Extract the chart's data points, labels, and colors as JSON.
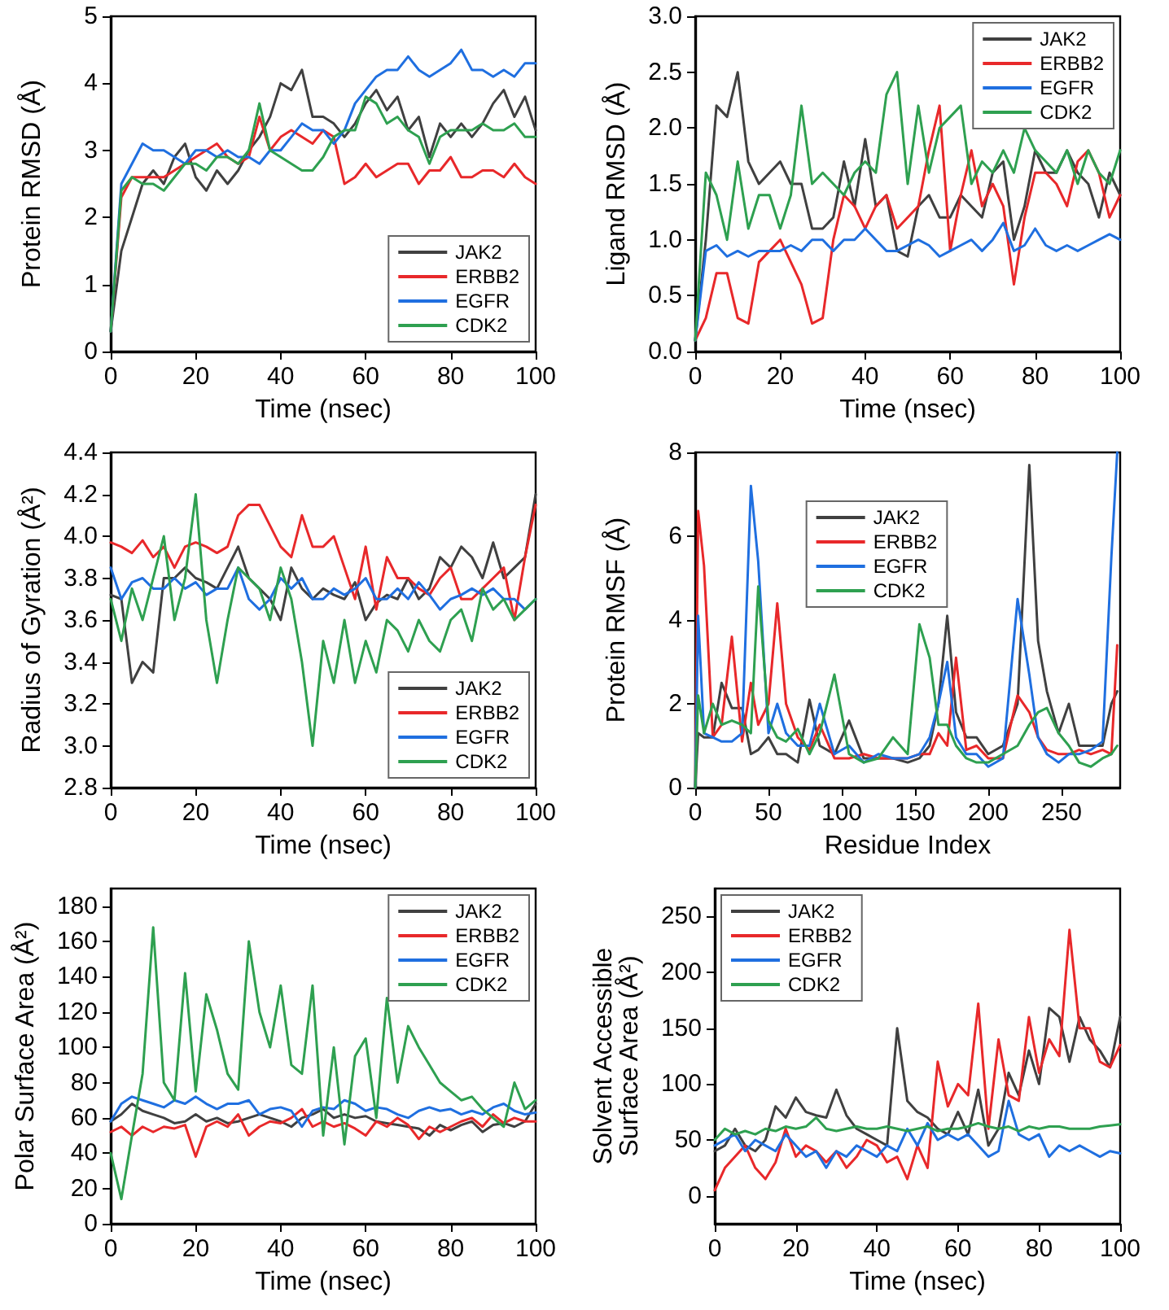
{
  "chart_data": [
    {
      "type": "line",
      "xlabel": "Time (nsec)",
      "ylabel": "Protein RMSD (Å)",
      "marker": "none",
      "legend": "bottom right",
      "x": [
        0,
        2.5,
        5,
        7.5,
        10,
        12.5,
        15,
        17.5,
        20,
        22.5,
        25,
        27.5,
        30,
        32.5,
        35,
        37.5,
        40,
        42.5,
        45,
        47.5,
        50,
        52.5,
        55,
        57.5,
        60,
        62.5,
        65,
        67.5,
        70,
        72.5,
        75,
        77.5,
        80,
        82.5,
        85,
        87.5,
        90,
        92.5,
        95,
        97.5,
        100
      ],
      "xlim": [
        0,
        100
      ],
      "xticks": [
        0,
        20,
        40,
        60,
        80,
        100
      ],
      "ylim": [
        0,
        5
      ],
      "yticks": [
        0,
        1,
        2,
        3,
        4,
        5
      ],
      "series": [
        {
          "name": "JAK2",
          "color": "#404040",
          "values": [
            0.3,
            1.5,
            2.0,
            2.5,
            2.7,
            2.5,
            2.9,
            3.1,
            2.6,
            2.4,
            2.7,
            2.5,
            2.7,
            3.0,
            3.2,
            3.5,
            4.0,
            3.9,
            4.2,
            3.5,
            3.5,
            3.4,
            3.2,
            3.4,
            3.7,
            3.9,
            3.6,
            3.8,
            3.3,
            3.5,
            2.9,
            3.4,
            3.2,
            3.4,
            3.2,
            3.4,
            3.7,
            3.9,
            3.5,
            3.8,
            3.3
          ]
        },
        {
          "name": "ERBB2",
          "color": "#e8282a",
          "values": [
            0.3,
            2.3,
            2.6,
            2.6,
            2.6,
            2.6,
            2.7,
            2.8,
            2.9,
            3.0,
            3.1,
            2.9,
            2.8,
            2.9,
            3.5,
            3.0,
            3.2,
            3.3,
            3.2,
            3.1,
            3.3,
            3.2,
            2.5,
            2.6,
            2.8,
            2.6,
            2.7,
            2.8,
            2.8,
            2.5,
            2.7,
            2.7,
            2.9,
            2.6,
            2.6,
            2.7,
            2.7,
            2.6,
            2.8,
            2.6,
            2.5
          ]
        },
        {
          "name": "EGFR",
          "color": "#1f6fe0",
          "values": [
            0.3,
            2.5,
            2.8,
            3.1,
            3.0,
            3.0,
            2.9,
            2.8,
            3.0,
            3.0,
            2.9,
            3.0,
            2.9,
            2.9,
            2.8,
            3.0,
            3.0,
            3.2,
            3.4,
            3.3,
            3.3,
            3.1,
            3.3,
            3.7,
            3.9,
            4.1,
            4.2,
            4.2,
            4.4,
            4.2,
            4.1,
            4.2,
            4.3,
            4.5,
            4.2,
            4.2,
            4.1,
            4.2,
            4.1,
            4.3,
            4.3
          ]
        },
        {
          "name": "CDK2",
          "color": "#2ea050",
          "values": [
            0.3,
            2.4,
            2.6,
            2.5,
            2.5,
            2.4,
            2.6,
            2.8,
            2.8,
            2.7,
            2.9,
            2.9,
            2.8,
            3.0,
            3.7,
            3.0,
            2.9,
            2.8,
            2.7,
            2.7,
            2.9,
            3.2,
            3.3,
            3.3,
            3.8,
            3.7,
            3.4,
            3.5,
            3.3,
            3.2,
            2.8,
            3.2,
            3.3,
            3.3,
            3.3,
            3.4,
            3.3,
            3.3,
            3.4,
            3.2,
            3.2
          ]
        }
      ]
    },
    {
      "type": "line",
      "xlabel": "Time (nsec)",
      "ylabel": "Ligand RMSD (Å)",
      "marker": "none",
      "legend": "top right",
      "x": [
        0,
        2.5,
        5,
        7.5,
        10,
        12.5,
        15,
        17.5,
        20,
        22.5,
        25,
        27.5,
        30,
        32.5,
        35,
        37.5,
        40,
        42.5,
        45,
        47.5,
        50,
        52.5,
        55,
        57.5,
        60,
        62.5,
        65,
        67.5,
        70,
        72.5,
        75,
        77.5,
        80,
        82.5,
        85,
        87.5,
        90,
        92.5,
        95,
        97.5,
        100
      ],
      "xlim": [
        0,
        100
      ],
      "xticks": [
        0,
        20,
        40,
        60,
        80,
        100
      ],
      "ylim": [
        0,
        3
      ],
      "yticks": [
        {
          "value": 0,
          "label": "0.0"
        },
        {
          "value": 0.5,
          "label": "0.5"
        },
        {
          "value": 1,
          "label": "1.0"
        },
        {
          "value": 1.5,
          "label": "1.5"
        },
        {
          "value": 2,
          "label": "2.0"
        },
        {
          "value": 2.5,
          "label": "2.5"
        },
        {
          "value": 3,
          "label": "3.0"
        }
      ],
      "series": [
        {
          "name": "JAK2",
          "color": "#404040",
          "values": [
            0.1,
            1.0,
            2.2,
            2.1,
            2.5,
            1.7,
            1.5,
            1.6,
            1.7,
            1.5,
            1.5,
            1.1,
            1.1,
            1.2,
            1.7,
            1.3,
            1.9,
            1.3,
            1.4,
            0.9,
            0.85,
            1.3,
            1.4,
            1.2,
            1.2,
            1.4,
            1.3,
            1.2,
            1.6,
            1.7,
            1.0,
            1.3,
            1.8,
            1.6,
            1.6,
            1.8,
            1.6,
            1.5,
            1.2,
            1.6,
            1.4
          ]
        },
        {
          "name": "ERBB2",
          "color": "#e8282a",
          "values": [
            0.1,
            0.3,
            0.7,
            0.7,
            0.3,
            0.25,
            0.8,
            0.9,
            1.0,
            0.8,
            0.6,
            0.25,
            0.3,
            1.0,
            1.4,
            1.3,
            1.1,
            1.3,
            1.4,
            1.1,
            1.2,
            1.3,
            1.8,
            2.2,
            0.9,
            1.4,
            1.8,
            1.3,
            1.5,
            1.3,
            0.6,
            1.2,
            1.6,
            1.6,
            1.5,
            1.3,
            1.7,
            1.8,
            1.6,
            1.2,
            1.4
          ]
        },
        {
          "name": "EGFR",
          "color": "#1f6fe0",
          "values": [
            0.1,
            0.9,
            0.95,
            0.85,
            0.9,
            0.85,
            0.9,
            0.9,
            0.9,
            0.95,
            0.9,
            1.0,
            1.0,
            0.9,
            1.0,
            1.0,
            1.1,
            1.0,
            0.9,
            0.9,
            0.95,
            1.0,
            0.95,
            0.85,
            0.9,
            0.95,
            1.0,
            0.9,
            1.0,
            1.15,
            0.9,
            0.95,
            1.1,
            0.95,
            0.9,
            0.95,
            0.9,
            0.95,
            1.0,
            1.05,
            1.0
          ]
        },
        {
          "name": "CDK2",
          "color": "#2ea050",
          "values": [
            0.1,
            1.6,
            1.4,
            1.0,
            1.7,
            1.1,
            1.4,
            1.4,
            1.1,
            1.4,
            2.2,
            1.5,
            1.6,
            1.5,
            1.4,
            1.6,
            1.7,
            1.6,
            2.3,
            2.5,
            1.5,
            2.2,
            1.6,
            2.0,
            2.1,
            2.2,
            1.5,
            1.7,
            1.6,
            1.8,
            1.6,
            2.0,
            1.8,
            1.7,
            1.6,
            1.8,
            1.5,
            1.8,
            1.6,
            1.5,
            1.8
          ]
        }
      ]
    },
    {
      "type": "line",
      "xlabel": "Time (nsec)",
      "ylabel": "Radius of Gyration (Å²)",
      "marker": "none",
      "legend": "bottom right",
      "x": [
        0,
        2.5,
        5,
        7.5,
        10,
        12.5,
        15,
        17.5,
        20,
        22.5,
        25,
        27.5,
        30,
        32.5,
        35,
        37.5,
        40,
        42.5,
        45,
        47.5,
        50,
        52.5,
        55,
        57.5,
        60,
        62.5,
        65,
        67.5,
        70,
        72.5,
        75,
        77.5,
        80,
        82.5,
        85,
        87.5,
        90,
        92.5,
        95,
        97.5,
        100
      ],
      "xlim": [
        0,
        100
      ],
      "xticks": [
        0,
        20,
        40,
        60,
        80,
        100
      ],
      "ylim": [
        2.8,
        4.4
      ],
      "yticks": [
        {
          "value": 2.8,
          "label": "2.8"
        },
        {
          "value": 3,
          "label": "3.0"
        },
        {
          "value": 3.2,
          "label": "3.2"
        },
        {
          "value": 3.4,
          "label": "3.4"
        },
        {
          "value": 3.6,
          "label": "3.6"
        },
        {
          "value": 3.8,
          "label": "3.8"
        },
        {
          "value": 4,
          "label": "4.0"
        },
        {
          "value": 4.2,
          "label": "4.2"
        },
        {
          "value": 4.4,
          "label": "4.4"
        }
      ],
      "series": [
        {
          "name": "JAK2",
          "color": "#404040",
          "values": [
            3.72,
            3.7,
            3.3,
            3.4,
            3.35,
            3.8,
            3.8,
            3.85,
            3.8,
            3.78,
            3.75,
            3.85,
            3.95,
            3.8,
            3.75,
            3.7,
            3.6,
            3.85,
            3.75,
            3.7,
            3.75,
            3.72,
            3.7,
            3.78,
            3.6,
            3.68,
            3.72,
            3.7,
            3.8,
            3.7,
            3.75,
            3.9,
            3.85,
            3.95,
            3.9,
            3.8,
            3.97,
            3.8,
            3.85,
            3.9,
            4.2
          ]
        },
        {
          "name": "ERBB2",
          "color": "#e8282a",
          "values": [
            3.97,
            3.95,
            3.92,
            3.98,
            3.9,
            3.95,
            3.85,
            3.95,
            3.97,
            3.95,
            3.92,
            3.95,
            4.1,
            4.15,
            4.15,
            4.05,
            3.95,
            3.9,
            4.1,
            3.95,
            3.95,
            4.0,
            3.85,
            3.7,
            3.95,
            3.65,
            3.9,
            3.8,
            3.8,
            3.75,
            3.72,
            3.8,
            3.85,
            3.7,
            3.7,
            3.75,
            3.8,
            3.85,
            3.6,
            3.9,
            4.15
          ]
        },
        {
          "name": "EGFR",
          "color": "#1f6fe0",
          "values": [
            3.85,
            3.7,
            3.78,
            3.8,
            3.75,
            3.75,
            3.8,
            3.75,
            3.78,
            3.72,
            3.75,
            3.75,
            3.85,
            3.7,
            3.65,
            3.7,
            3.8,
            3.75,
            3.8,
            3.7,
            3.7,
            3.75,
            3.72,
            3.75,
            3.8,
            3.7,
            3.7,
            3.75,
            3.7,
            3.78,
            3.72,
            3.65,
            3.7,
            3.72,
            3.75,
            3.72,
            3.75,
            3.7,
            3.7,
            3.65,
            3.7
          ]
        },
        {
          "name": "CDK2",
          "color": "#2ea050",
          "values": [
            3.7,
            3.5,
            3.75,
            3.6,
            3.8,
            4.0,
            3.6,
            3.8,
            4.2,
            3.6,
            3.3,
            3.6,
            3.85,
            3.8,
            3.75,
            3.6,
            3.85,
            3.7,
            3.4,
            3.0,
            3.5,
            3.3,
            3.6,
            3.3,
            3.5,
            3.35,
            3.6,
            3.55,
            3.45,
            3.6,
            3.5,
            3.45,
            3.6,
            3.65,
            3.5,
            3.75,
            3.65,
            3.7,
            3.6,
            3.65,
            3.7
          ]
        }
      ]
    },
    {
      "type": "line",
      "xlabel": "Residue Index",
      "ylabel": "Protein RMSF (Å)",
      "marker": "none",
      "legend": "top",
      "x": [
        0,
        2,
        6,
        12,
        18,
        25,
        32,
        38,
        43,
        50,
        56,
        62,
        70,
        78,
        85,
        95,
        105,
        115,
        125,
        135,
        145,
        153,
        160,
        166,
        172,
        178,
        185,
        192,
        200,
        210,
        220,
        228,
        234,
        240,
        248,
        255,
        262,
        270,
        278,
        284,
        288
      ],
      "xlim": [
        0,
        290
      ],
      "xticks": [
        0,
        50,
        100,
        150,
        200,
        250
      ],
      "ylim": [
        0,
        8
      ],
      "yticks": [
        0,
        2,
        4,
        6,
        8
      ],
      "series": [
        {
          "name": "JAK2",
          "color": "#404040",
          "values": [
            0,
            1.3,
            1.2,
            1.2,
            2.5,
            1.9,
            1.9,
            0.8,
            0.9,
            1.2,
            0.8,
            0.8,
            0.6,
            2.1,
            1.0,
            0.8,
            1.6,
            0.7,
            0.7,
            0.7,
            0.6,
            0.7,
            1.0,
            2.0,
            4.1,
            1.8,
            1.2,
            1.2,
            0.8,
            1.0,
            2.0,
            7.7,
            3.5,
            2.3,
            1.3,
            2.0,
            1.0,
            1.0,
            1.0,
            2.0,
            2.3
          ]
        },
        {
          "name": "ERBB2",
          "color": "#e8282a",
          "values": [
            0,
            6.6,
            5.3,
            1.2,
            1.5,
            3.6,
            1.1,
            2.5,
            1.5,
            2.0,
            4.4,
            2.0,
            1.2,
            0.9,
            1.5,
            0.7,
            0.7,
            0.8,
            0.7,
            0.7,
            0.7,
            0.8,
            0.8,
            1.3,
            1.0,
            3.1,
            0.9,
            1.0,
            0.7,
            0.7,
            2.2,
            1.8,
            1.2,
            0.9,
            0.8,
            0.8,
            0.9,
            0.8,
            0.9,
            0.8,
            3.4
          ]
        },
        {
          "name": "EGFR",
          "color": "#1f6fe0",
          "values": [
            0,
            4.1,
            1.3,
            1.2,
            1.1,
            1.1,
            1.3,
            7.2,
            5.4,
            1.3,
            2.0,
            1.3,
            1.0,
            1.0,
            2.0,
            0.8,
            1.0,
            0.6,
            0.8,
            0.7,
            0.7,
            0.8,
            1.2,
            2.0,
            3.0,
            1.2,
            0.8,
            0.8,
            0.5,
            0.7,
            4.5,
            2.7,
            1.2,
            0.8,
            0.6,
            0.8,
            0.8,
            0.9,
            1.1,
            5.5,
            8.0
          ]
        },
        {
          "name": "CDK2",
          "color": "#2ea050",
          "values": [
            0,
            2.2,
            1.3,
            2.0,
            1.5,
            1.6,
            1.5,
            1.3,
            4.8,
            1.6,
            1.2,
            1.1,
            1.4,
            0.8,
            1.3,
            2.7,
            0.8,
            0.6,
            0.7,
            1.2,
            0.8,
            3.9,
            3.1,
            1.5,
            1.5,
            1.0,
            0.7,
            0.6,
            0.6,
            0.8,
            1.0,
            1.5,
            1.8,
            1.9,
            1.3,
            1.0,
            0.6,
            0.5,
            0.7,
            0.8,
            1.0
          ]
        }
      ]
    },
    {
      "type": "line",
      "xlabel": "Time (nsec)",
      "ylabel": "Polar Surface Area (Å²)",
      "marker": "none",
      "legend": "top right",
      "x": [
        0,
        2.5,
        5,
        7.5,
        10,
        12.5,
        15,
        17.5,
        20,
        22.5,
        25,
        27.5,
        30,
        32.5,
        35,
        37.5,
        40,
        42.5,
        45,
        47.5,
        50,
        52.5,
        55,
        57.5,
        60,
        62.5,
        65,
        67.5,
        70,
        72.5,
        75,
        77.5,
        80,
        82.5,
        85,
        87.5,
        90,
        92.5,
        95,
        97.5,
        100
      ],
      "xlim": [
        0,
        100
      ],
      "xticks": [
        0,
        20,
        40,
        60,
        80,
        100
      ],
      "ylim": [
        0,
        190
      ],
      "yticks": [
        0,
        20,
        40,
        60,
        80,
        100,
        120,
        140,
        160,
        180
      ],
      "series": [
        {
          "name": "JAK2",
          "color": "#404040",
          "values": [
            58,
            62,
            68,
            64,
            62,
            60,
            57,
            58,
            62,
            58,
            60,
            57,
            58,
            60,
            62,
            60,
            58,
            55,
            60,
            62,
            65,
            60,
            62,
            60,
            61,
            58,
            57,
            56,
            55,
            54,
            50,
            56,
            53,
            56,
            58,
            52,
            56,
            57,
            55,
            58,
            68
          ]
        },
        {
          "name": "ERBB2",
          "color": "#e8282a",
          "values": [
            52,
            55,
            50,
            55,
            52,
            55,
            54,
            56,
            38,
            55,
            58,
            55,
            62,
            50,
            55,
            58,
            57,
            60,
            65,
            55,
            58,
            55,
            57,
            54,
            50,
            58,
            55,
            60,
            56,
            48,
            55,
            52,
            55,
            58,
            60,
            55,
            62,
            57,
            60,
            58,
            58
          ]
        },
        {
          "name": "EGFR",
          "color": "#1f6fe0",
          "values": [
            58,
            68,
            72,
            70,
            68,
            66,
            70,
            68,
            72,
            68,
            65,
            68,
            68,
            70,
            62,
            65,
            66,
            64,
            55,
            64,
            66,
            65,
            70,
            68,
            64,
            66,
            65,
            62,
            60,
            64,
            66,
            64,
            65,
            62,
            64,
            62,
            66,
            68,
            64,
            62,
            63
          ]
        },
        {
          "name": "CDK2",
          "color": "#2ea050",
          "values": [
            40,
            14,
            50,
            85,
            168,
            80,
            70,
            142,
            75,
            130,
            110,
            85,
            76,
            160,
            120,
            100,
            135,
            90,
            85,
            135,
            50,
            100,
            45,
            95,
            105,
            60,
            128,
            80,
            112,
            100,
            90,
            80,
            75,
            70,
            72,
            65,
            60,
            55,
            80,
            65,
            70
          ]
        }
      ]
    },
    {
      "type": "line",
      "xlabel": "Time (nsec)",
      "ylabel": "Solvent Accessible Surface Area (Å²)",
      "marker": "none",
      "legend": "top left",
      "x": [
        0,
        2.5,
        5,
        7.5,
        10,
        12.5,
        15,
        17.5,
        20,
        22.5,
        25,
        27.5,
        30,
        32.5,
        35,
        37.5,
        40,
        42.5,
        45,
        47.5,
        50,
        52.5,
        55,
        57.5,
        60,
        62.5,
        65,
        67.5,
        70,
        72.5,
        75,
        77.5,
        80,
        82.5,
        85,
        87.5,
        90,
        92.5,
        95,
        97.5,
        100
      ],
      "xlim": [
        0,
        100
      ],
      "xticks": [
        0,
        20,
        40,
        60,
        80,
        100
      ],
      "ylim": [
        -25,
        275
      ],
      "yticks": [
        0,
        50,
        100,
        150,
        200,
        250
      ],
      "series": [
        {
          "name": "JAK2",
          "color": "#404040",
          "values": [
            40,
            45,
            60,
            45,
            40,
            50,
            80,
            70,
            88,
            75,
            72,
            70,
            95,
            72,
            60,
            55,
            50,
            45,
            150,
            85,
            75,
            70,
            60,
            55,
            75,
            55,
            95,
            45,
            60,
            110,
            90,
            130,
            100,
            168,
            160,
            120,
            160,
            140,
            130,
            115,
            160
          ]
        },
        {
          "name": "ERBB2",
          "color": "#e8282a",
          "values": [
            5,
            25,
            35,
            45,
            25,
            15,
            30,
            60,
            35,
            45,
            40,
            30,
            40,
            25,
            35,
            50,
            45,
            30,
            35,
            15,
            45,
            25,
            120,
            80,
            100,
            90,
            172,
            60,
            140,
            90,
            85,
            160,
            110,
            140,
            125,
            238,
            150,
            150,
            120,
            115,
            135
          ]
        },
        {
          "name": "EGFR",
          "color": "#1f6fe0",
          "values": [
            45,
            50,
            55,
            40,
            50,
            45,
            40,
            55,
            45,
            35,
            40,
            25,
            40,
            35,
            45,
            40,
            35,
            45,
            40,
            60,
            45,
            65,
            50,
            55,
            50,
            55,
            45,
            35,
            40,
            85,
            55,
            50,
            55,
            35,
            45,
            40,
            45,
            40,
            35,
            40,
            38
          ]
        },
        {
          "name": "CDK2",
          "color": "#2ea050",
          "values": [
            50,
            60,
            55,
            58,
            55,
            60,
            58,
            62,
            60,
            62,
            70,
            60,
            58,
            60,
            62,
            60,
            60,
            62,
            60,
            58,
            60,
            62,
            58,
            60,
            60,
            62,
            65,
            62,
            60,
            62,
            58,
            62,
            60,
            62,
            62,
            60,
            60,
            60,
            62,
            63,
            64
          ]
        }
      ]
    }
  ]
}
